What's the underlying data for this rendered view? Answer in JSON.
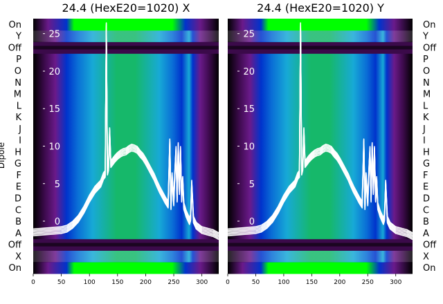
{
  "chart_data": [
    {
      "type": "heatmap",
      "title": "24.4 (HexE20=1020) X",
      "ylabel": "Dipole",
      "row_labels_bottom_to_top": [
        "On",
        "X",
        "Off",
        "A",
        "B",
        "C",
        "D",
        "E",
        "F",
        "G",
        "H",
        "I",
        "J",
        "K",
        "L",
        "M",
        "N",
        "O",
        "P",
        "Off",
        "Y",
        "On"
      ],
      "x_ticks": [
        0,
        50,
        100,
        150,
        200,
        250,
        300
      ],
      "xlim": [
        0,
        330
      ],
      "overlay_y_ticks": [
        0,
        5,
        10,
        15,
        20,
        25
      ],
      "overlay_ylim": [
        -7,
        27
      ],
      "colormap": [
        "#000000",
        "#3b0a4a",
        "#6a1a8a",
        "#0033cc",
        "#0a6fd6",
        "#17a9d6",
        "#16b86a",
        "#00ff00"
      ],
      "overlay_color": "#ffffff",
      "overlay_curves": 6,
      "overlay_curve": {
        "x": [
          0,
          50,
          60,
          70,
          80,
          90,
          100,
          110,
          120,
          125,
          128,
          130,
          132,
          134,
          136,
          138,
          140,
          142,
          145,
          150,
          155,
          160,
          165,
          170,
          175,
          180,
          185,
          190,
          195,
          200,
          205,
          210,
          215,
          220,
          225,
          230,
          235,
          240,
          243,
          245,
          247,
          250,
          252,
          254,
          256,
          258,
          260,
          262,
          264,
          266,
          268,
          270,
          272,
          275,
          278,
          280,
          282,
          285,
          290,
          300,
          320,
          330
        ],
        "y": [
          -1.5,
          -1.2,
          -1.0,
          -0.5,
          0.3,
          1.5,
          3.0,
          4.2,
          5.0,
          6.0,
          6.3,
          26.0,
          6.6,
          7.2,
          12.0,
          7.6,
          7.8,
          8.0,
          8.3,
          8.7,
          9.0,
          9.2,
          9.3,
          9.6,
          9.8,
          9.7,
          9.5,
          9.0,
          8.6,
          8.0,
          7.3,
          6.6,
          5.9,
          5.0,
          4.2,
          3.5,
          2.8,
          2.2,
          10.5,
          2.0,
          6.0,
          2.5,
          6.5,
          9.5,
          3.0,
          10.0,
          4.0,
          9.5,
          3.0,
          5.5,
          2.0,
          1.5,
          1.0,
          0.5,
          0.0,
          0.5,
          5.0,
          0.2,
          -0.6,
          -1.2,
          -1.6,
          -2.0
        ]
      }
    },
    {
      "type": "heatmap",
      "title": "24.4 (HexE20=1020) Y",
      "row_labels_bottom_to_top": [
        "On",
        "X",
        "Off",
        "A",
        "B",
        "C",
        "D",
        "E",
        "F",
        "G",
        "H",
        "I",
        "J",
        "K",
        "L",
        "M",
        "N",
        "O",
        "P",
        "Off",
        "Y",
        "On"
      ],
      "x_ticks": [
        0,
        50,
        100,
        150,
        200,
        250,
        300
      ],
      "xlim": [
        0,
        330
      ],
      "overlay_y_ticks": [
        0,
        5,
        10,
        15,
        20,
        25
      ],
      "overlay_ylim": [
        -7,
        27
      ],
      "colormap": [
        "#000000",
        "#3b0a4a",
        "#6a1a8a",
        "#0033cc",
        "#0a6fd6",
        "#17a9d6",
        "#16b86a",
        "#00ff00"
      ],
      "overlay_color": "#ffffff",
      "overlay_curves": 6,
      "overlay_curve": {
        "x": [
          0,
          50,
          60,
          70,
          80,
          90,
          100,
          110,
          120,
          125,
          128,
          130,
          132,
          134,
          136,
          138,
          140,
          142,
          145,
          150,
          155,
          160,
          165,
          170,
          175,
          180,
          185,
          190,
          195,
          200,
          205,
          210,
          215,
          220,
          225,
          230,
          235,
          240,
          243,
          245,
          247,
          250,
          252,
          254,
          256,
          258,
          260,
          262,
          264,
          266,
          268,
          270,
          272,
          275,
          278,
          280,
          282,
          285,
          290,
          300,
          320,
          330
        ],
        "y": [
          -1.5,
          -1.2,
          -1.0,
          -0.5,
          0.3,
          1.5,
          3.0,
          4.2,
          5.0,
          6.0,
          6.3,
          26.0,
          6.6,
          7.2,
          12.0,
          7.6,
          7.8,
          8.0,
          8.3,
          8.7,
          9.0,
          9.2,
          9.3,
          9.6,
          9.8,
          9.7,
          9.5,
          9.0,
          8.6,
          8.0,
          7.3,
          6.6,
          5.9,
          5.0,
          4.2,
          3.5,
          2.8,
          2.2,
          10.5,
          2.0,
          6.0,
          2.5,
          6.5,
          9.5,
          3.0,
          10.0,
          4.0,
          9.5,
          3.0,
          5.5,
          2.0,
          1.5,
          1.0,
          0.5,
          0.0,
          0.5,
          5.0,
          0.2,
          -0.6,
          -1.2,
          -1.6,
          -2.0
        ]
      }
    }
  ]
}
